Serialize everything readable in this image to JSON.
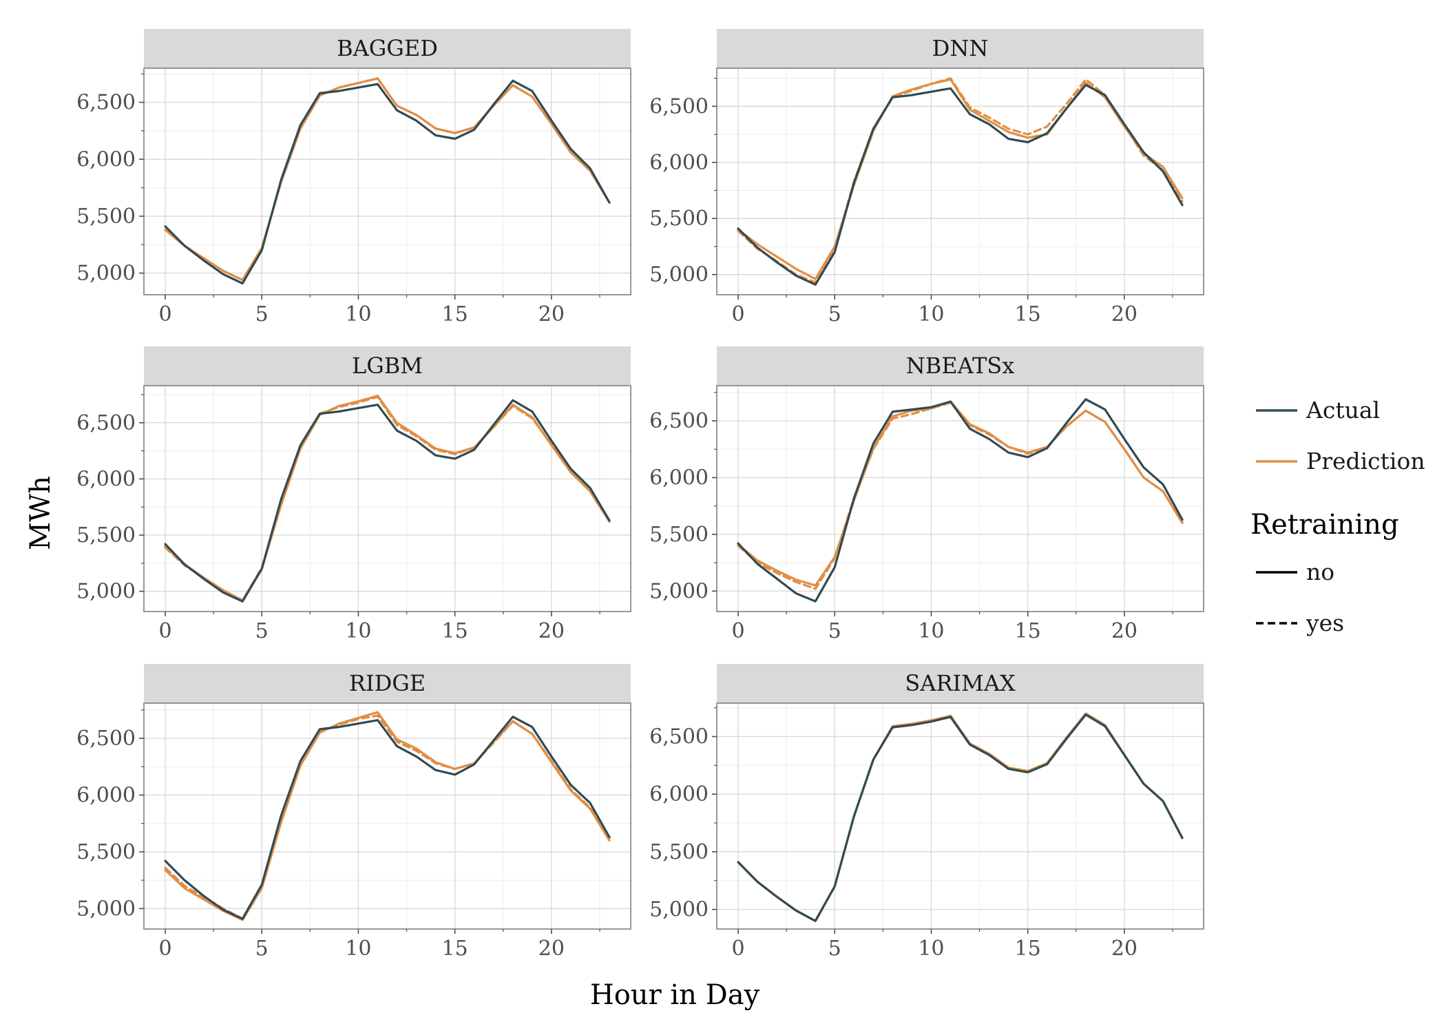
{
  "chart_data": {
    "type": "line",
    "layout": "faceted 3x2",
    "xlabel": "Hour in Day",
    "ylabel": "MWh",
    "x": [
      0,
      1,
      2,
      3,
      4,
      5,
      6,
      7,
      8,
      9,
      10,
      11,
      12,
      13,
      14,
      15,
      16,
      17,
      18,
      19,
      20,
      21,
      22,
      23
    ],
    "x_ticks": [
      0,
      5,
      10,
      15,
      20
    ],
    "x_tick_labels": [
      "0",
      "5",
      "10",
      "15",
      "20"
    ],
    "y_ticks": [
      5000,
      5500,
      6000,
      6500
    ],
    "y_tick_labels": [
      "5,000",
      "5,500",
      "6,000",
      "6,500"
    ],
    "grid": true,
    "legend": {
      "placement": "right",
      "color_entries": [
        {
          "label": "Actual",
          "color": "#2f4b55"
        },
        {
          "label": "Prediction",
          "color": "#e08e45"
        }
      ],
      "linetype_title": "Retraining",
      "linetype_entries": [
        {
          "label": "no",
          "dash": "solid"
        },
        {
          "label": "yes",
          "dash": "dashed"
        }
      ]
    },
    "panels": [
      {
        "title": "BAGGED",
        "ylim": [
          4810,
          6800
        ],
        "series": [
          {
            "name": "Actual",
            "retraining": "no",
            "values": [
              5410,
              5240,
              5110,
              4990,
              4910,
              5200,
              5820,
              6300,
              6580,
              6600,
              6630,
              6660,
              6430,
              6340,
              6210,
              6180,
              6260,
              6480,
              6690,
              6600,
              6340,
              6090,
              5920,
              5620
            ]
          },
          {
            "name": "Prediction",
            "retraining": "no",
            "values": [
              5380,
              5240,
              5130,
              5020,
              4940,
              5220,
              5800,
              6270,
              6560,
              6630,
              6670,
              6710,
              6470,
              6390,
              6270,
              6230,
              6280,
              6470,
              6650,
              6550,
              6310,
              6060,
              5900,
              5620
            ]
          },
          {
            "name": "Prediction",
            "retraining": "yes",
            "values": [
              5380,
              5240,
              5130,
              5020,
              4940,
              5220,
              5800,
              6270,
              6560,
              6630,
              6670,
              6710,
              6470,
              6390,
              6270,
              6230,
              6280,
              6470,
              6650,
              6550,
              6310,
              6060,
              5900,
              5620
            ]
          }
        ]
      },
      {
        "title": "DNN",
        "ylim": [
          4820,
          6840
        ],
        "series": [
          {
            "name": "Actual",
            "retraining": "no",
            "values": [
              5410,
              5240,
              5110,
              4990,
              4910,
              5200,
              5820,
              6300,
              6580,
              6600,
              6630,
              6660,
              6430,
              6340,
              6210,
              6180,
              6260,
              6480,
              6690,
              6600,
              6340,
              6090,
              5920,
              5620
            ]
          },
          {
            "name": "Prediction",
            "retraining": "no",
            "values": [
              5400,
              5270,
              5160,
              5050,
              4960,
              5250,
              5800,
              6280,
              6590,
              6650,
              6700,
              6740,
              6470,
              6370,
              6270,
              6220,
              6250,
              6480,
              6710,
              6580,
              6320,
              6080,
              5960,
              5680
            ]
          },
          {
            "name": "Prediction",
            "retraining": "yes",
            "values": [
              5390,
              5230,
              5120,
              5000,
              4930,
              5230,
              5830,
              6300,
              6580,
              6640,
              6700,
              6750,
              6490,
              6400,
              6300,
              6250,
              6320,
              6520,
              6740,
              6600,
              6330,
              6060,
              5930,
              5650
            ]
          }
        ]
      },
      {
        "title": "LGBM",
        "ylim": [
          4820,
          6830
        ],
        "series": [
          {
            "name": "Actual",
            "retraining": "no",
            "values": [
              5420,
              5240,
              5110,
              4990,
              4910,
              5200,
              5820,
              6300,
              6580,
              6600,
              6630,
              6660,
              6430,
              6340,
              6210,
              6180,
              6260,
              6480,
              6700,
              6600,
              6340,
              6090,
              5920,
              5630
            ]
          },
          {
            "name": "Prediction",
            "retraining": "no",
            "values": [
              5400,
              5240,
              5120,
              5010,
              4920,
              5200,
              5770,
              6270,
              6570,
              6650,
              6690,
              6740,
              6500,
              6390,
              6270,
              6230,
              6280,
              6460,
              6660,
              6550,
              6300,
              6060,
              5890,
              5620
            ]
          },
          {
            "name": "Prediction",
            "retraining": "yes",
            "values": [
              5390,
              5230,
              5120,
              5000,
              4920,
              5210,
              5790,
              6280,
              6580,
              6640,
              6680,
              6730,
              6480,
              6380,
              6260,
              6220,
              6280,
              6460,
              6650,
              6540,
              6310,
              6070,
              5900,
              5630
            ]
          }
        ]
      },
      {
        "title": "NBEATSx",
        "ylim": [
          4820,
          6810
        ],
        "series": [
          {
            "name": "Actual",
            "retraining": "no",
            "values": [
              5420,
              5240,
              5110,
              4980,
              4910,
              5210,
              5820,
              6300,
              6580,
              6600,
              6620,
              6670,
              6430,
              6340,
              6220,
              6180,
              6260,
              6480,
              6690,
              6600,
              6340,
              6090,
              5940,
              5630
            ]
          },
          {
            "name": "Prediction",
            "retraining": "no",
            "values": [
              5410,
              5270,
              5180,
              5100,
              5050,
              5300,
              5800,
              6260,
              6540,
              6590,
              6610,
              6670,
              6470,
              6390,
              6270,
              6220,
              6270,
              6450,
              6590,
              6490,
              6250,
              6000,
              5880,
              5600
            ]
          },
          {
            "name": "Prediction",
            "retraining": "yes",
            "values": [
              5400,
              5250,
              5160,
              5080,
              5020,
              5290,
              5820,
              6250,
              6520,
              6560,
              6610,
              6660,
              6460,
              6380,
              6270,
              6210,
              6270,
              6450,
              6590,
              6490,
              6250,
              6000,
              5880,
              5610
            ]
          }
        ]
      },
      {
        "title": "RIDGE",
        "ylim": [
          4820,
          6810
        ],
        "series": [
          {
            "name": "Actual",
            "retraining": "no",
            "values": [
              5420,
              5250,
              5110,
              4990,
              4910,
              5210,
              5820,
              6300,
              6580,
              6600,
              6630,
              6660,
              6430,
              6340,
              6220,
              6180,
              6270,
              6480,
              6690,
              6600,
              6340,
              6090,
              5930,
              5630
            ]
          },
          {
            "name": "Prediction",
            "retraining": "no",
            "values": [
              5340,
              5180,
              5080,
              4980,
              4900,
              5180,
              5760,
              6260,
              6550,
              6630,
              6680,
              6730,
              6490,
              6410,
              6290,
              6230,
              6280,
              6470,
              6650,
              6540,
              6290,
              6040,
              5880,
              5600
            ]
          },
          {
            "name": "Prediction",
            "retraining": "yes",
            "values": [
              5360,
              5200,
              5100,
              5000,
              4910,
              5190,
              5770,
              6270,
              6560,
              6620,
              6670,
              6700,
              6470,
              6390,
              6280,
              6230,
              6280,
              6460,
              6650,
              6540,
              6300,
              6050,
              5890,
              5620
            ]
          }
        ]
      },
      {
        "title": "SARIMAX",
        "ylim": [
          4830,
          6790
        ],
        "series": [
          {
            "name": "Actual",
            "retraining": "no",
            "values": [
              5410,
              5240,
              5110,
              4990,
              4900,
              5200,
              5810,
              6300,
              6580,
              6600,
              6630,
              6670,
              6430,
              6340,
              6220,
              6190,
              6260,
              6480,
              6690,
              6590,
              6340,
              6090,
              5940,
              5620
            ]
          },
          {
            "name": "Prediction",
            "retraining": "no",
            "values": [
              5410,
              5240,
              5110,
              4990,
              4900,
              5200,
              5810,
              6300,
              6590,
              6610,
              6640,
              6680,
              6440,
              6350,
              6230,
              6200,
              6270,
              6490,
              6700,
              6600,
              6340,
              6090,
              5940,
              5620
            ]
          },
          {
            "name": "Prediction",
            "retraining": "yes",
            "values": [
              5410,
              5240,
              5110,
              4990,
              4900,
              5200,
              5810,
              6300,
              6590,
              6610,
              6640,
              6680,
              6440,
              6350,
              6230,
              6200,
              6270,
              6490,
              6700,
              6600,
              6340,
              6090,
              5940,
              5620
            ]
          }
        ]
      }
    ]
  }
}
